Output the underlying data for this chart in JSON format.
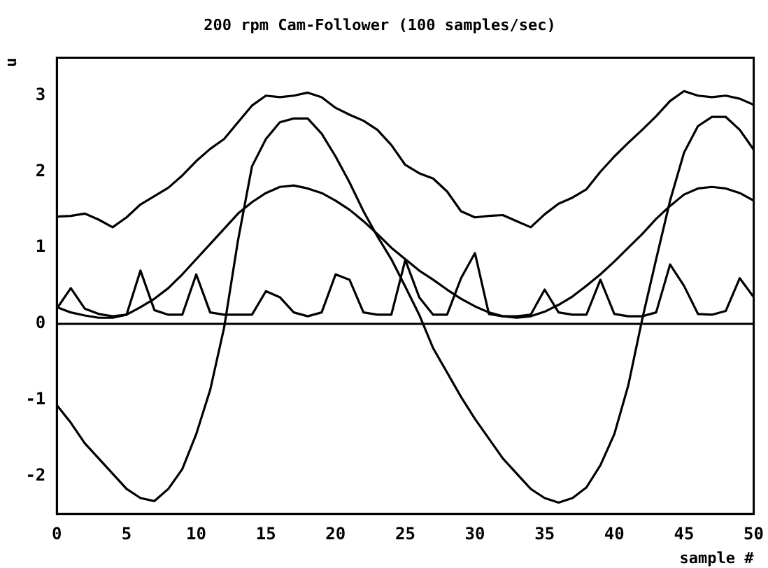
{
  "chart_data": {
    "type": "line",
    "title": "200 rpm Cam-Follower (100 samples/sec)",
    "xlabel": "sample #",
    "ylabel": "u",
    "x": [
      0,
      1,
      2,
      3,
      4,
      5,
      6,
      7,
      8,
      9,
      10,
      11,
      12,
      13,
      14,
      15,
      16,
      17,
      18,
      19,
      20,
      21,
      22,
      23,
      24,
      25,
      26,
      27,
      28,
      29,
      30,
      31,
      32,
      33,
      34,
      35,
      36,
      37,
      38,
      39,
      40,
      41,
      42,
      43,
      44,
      45,
      46,
      47,
      48,
      49,
      50
    ],
    "series": [
      {
        "color": "#000000",
        "values": [
          1.41,
          1.42,
          1.45,
          1.37,
          1.27,
          1.4,
          1.57,
          1.68,
          1.79,
          1.95,
          2.14,
          2.3,
          2.43,
          2.65,
          2.87,
          3.0,
          2.98,
          3.0,
          3.04,
          2.98,
          2.84,
          2.75,
          2.67,
          2.55,
          2.35,
          2.09,
          1.98,
          1.91,
          1.74,
          1.48,
          1.4,
          1.42,
          1.43,
          1.35,
          1.27,
          1.44,
          1.58,
          1.66,
          1.77,
          2.0,
          2.2,
          2.38,
          2.55,
          2.73,
          2.93,
          3.06,
          3.0,
          2.98,
          3.0,
          2.96,
          2.88
        ]
      },
      {
        "color": "#000000",
        "values": [
          -1.07,
          -1.3,
          -1.57,
          -1.77,
          -1.97,
          -2.17,
          -2.29,
          -2.33,
          -2.17,
          -1.91,
          -1.45,
          -0.87,
          -0.05,
          1.1,
          2.07,
          2.43,
          2.65,
          2.7,
          2.7,
          2.5,
          2.2,
          1.86,
          1.48,
          1.15,
          0.85,
          0.49,
          0.12,
          -0.32,
          -0.64,
          -0.96,
          -1.25,
          -1.51,
          -1.77,
          -1.97,
          -2.17,
          -2.29,
          -2.35,
          -2.29,
          -2.15,
          -1.86,
          -1.45,
          -0.81,
          0.06,
          0.85,
          1.62,
          2.25,
          2.6,
          2.72,
          2.72,
          2.55,
          2.29
        ]
      },
      {
        "color": "#000000",
        "values": [
          0.22,
          0.15,
          0.11,
          0.08,
          0.08,
          0.12,
          0.22,
          0.33,
          0.47,
          0.65,
          0.85,
          1.05,
          1.25,
          1.45,
          1.6,
          1.72,
          1.8,
          1.82,
          1.78,
          1.72,
          1.62,
          1.5,
          1.35,
          1.18,
          1.0,
          0.85,
          0.7,
          0.58,
          0.45,
          0.33,
          0.23,
          0.15,
          0.1,
          0.08,
          0.1,
          0.16,
          0.25,
          0.36,
          0.5,
          0.65,
          0.82,
          1.0,
          1.18,
          1.38,
          1.55,
          1.7,
          1.78,
          1.8,
          1.78,
          1.72,
          1.62
        ]
      },
      {
        "color": "#000000",
        "values": [
          0.2,
          0.47,
          0.2,
          0.13,
          0.1,
          0.12,
          0.7,
          0.18,
          0.12,
          0.12,
          0.65,
          0.15,
          0.12,
          0.12,
          0.12,
          0.43,
          0.35,
          0.15,
          0.1,
          0.15,
          0.65,
          0.58,
          0.15,
          0.12,
          0.12,
          0.84,
          0.35,
          0.12,
          0.12,
          0.6,
          0.93,
          0.13,
          0.1,
          0.1,
          0.12,
          0.45,
          0.15,
          0.12,
          0.12,
          0.58,
          0.13,
          0.1,
          0.1,
          0.15,
          0.78,
          0.5,
          0.13,
          0.12,
          0.17,
          0.6,
          0.35
        ]
      }
    ],
    "xlim": [
      0,
      50
    ],
    "xticks": [
      0,
      5,
      10,
      15,
      20,
      25,
      30,
      35,
      40,
      45,
      50
    ],
    "ylim": [
      -2.5,
      3.5
    ],
    "yticks": [
      -2,
      -1,
      0,
      1,
      2,
      3
    ],
    "ref_lines": [
      {
        "axis": "y",
        "value": 0,
        "color": "#000000"
      }
    ],
    "grid": false,
    "legend": false,
    "marker": "none",
    "line_style": "solid"
  }
}
